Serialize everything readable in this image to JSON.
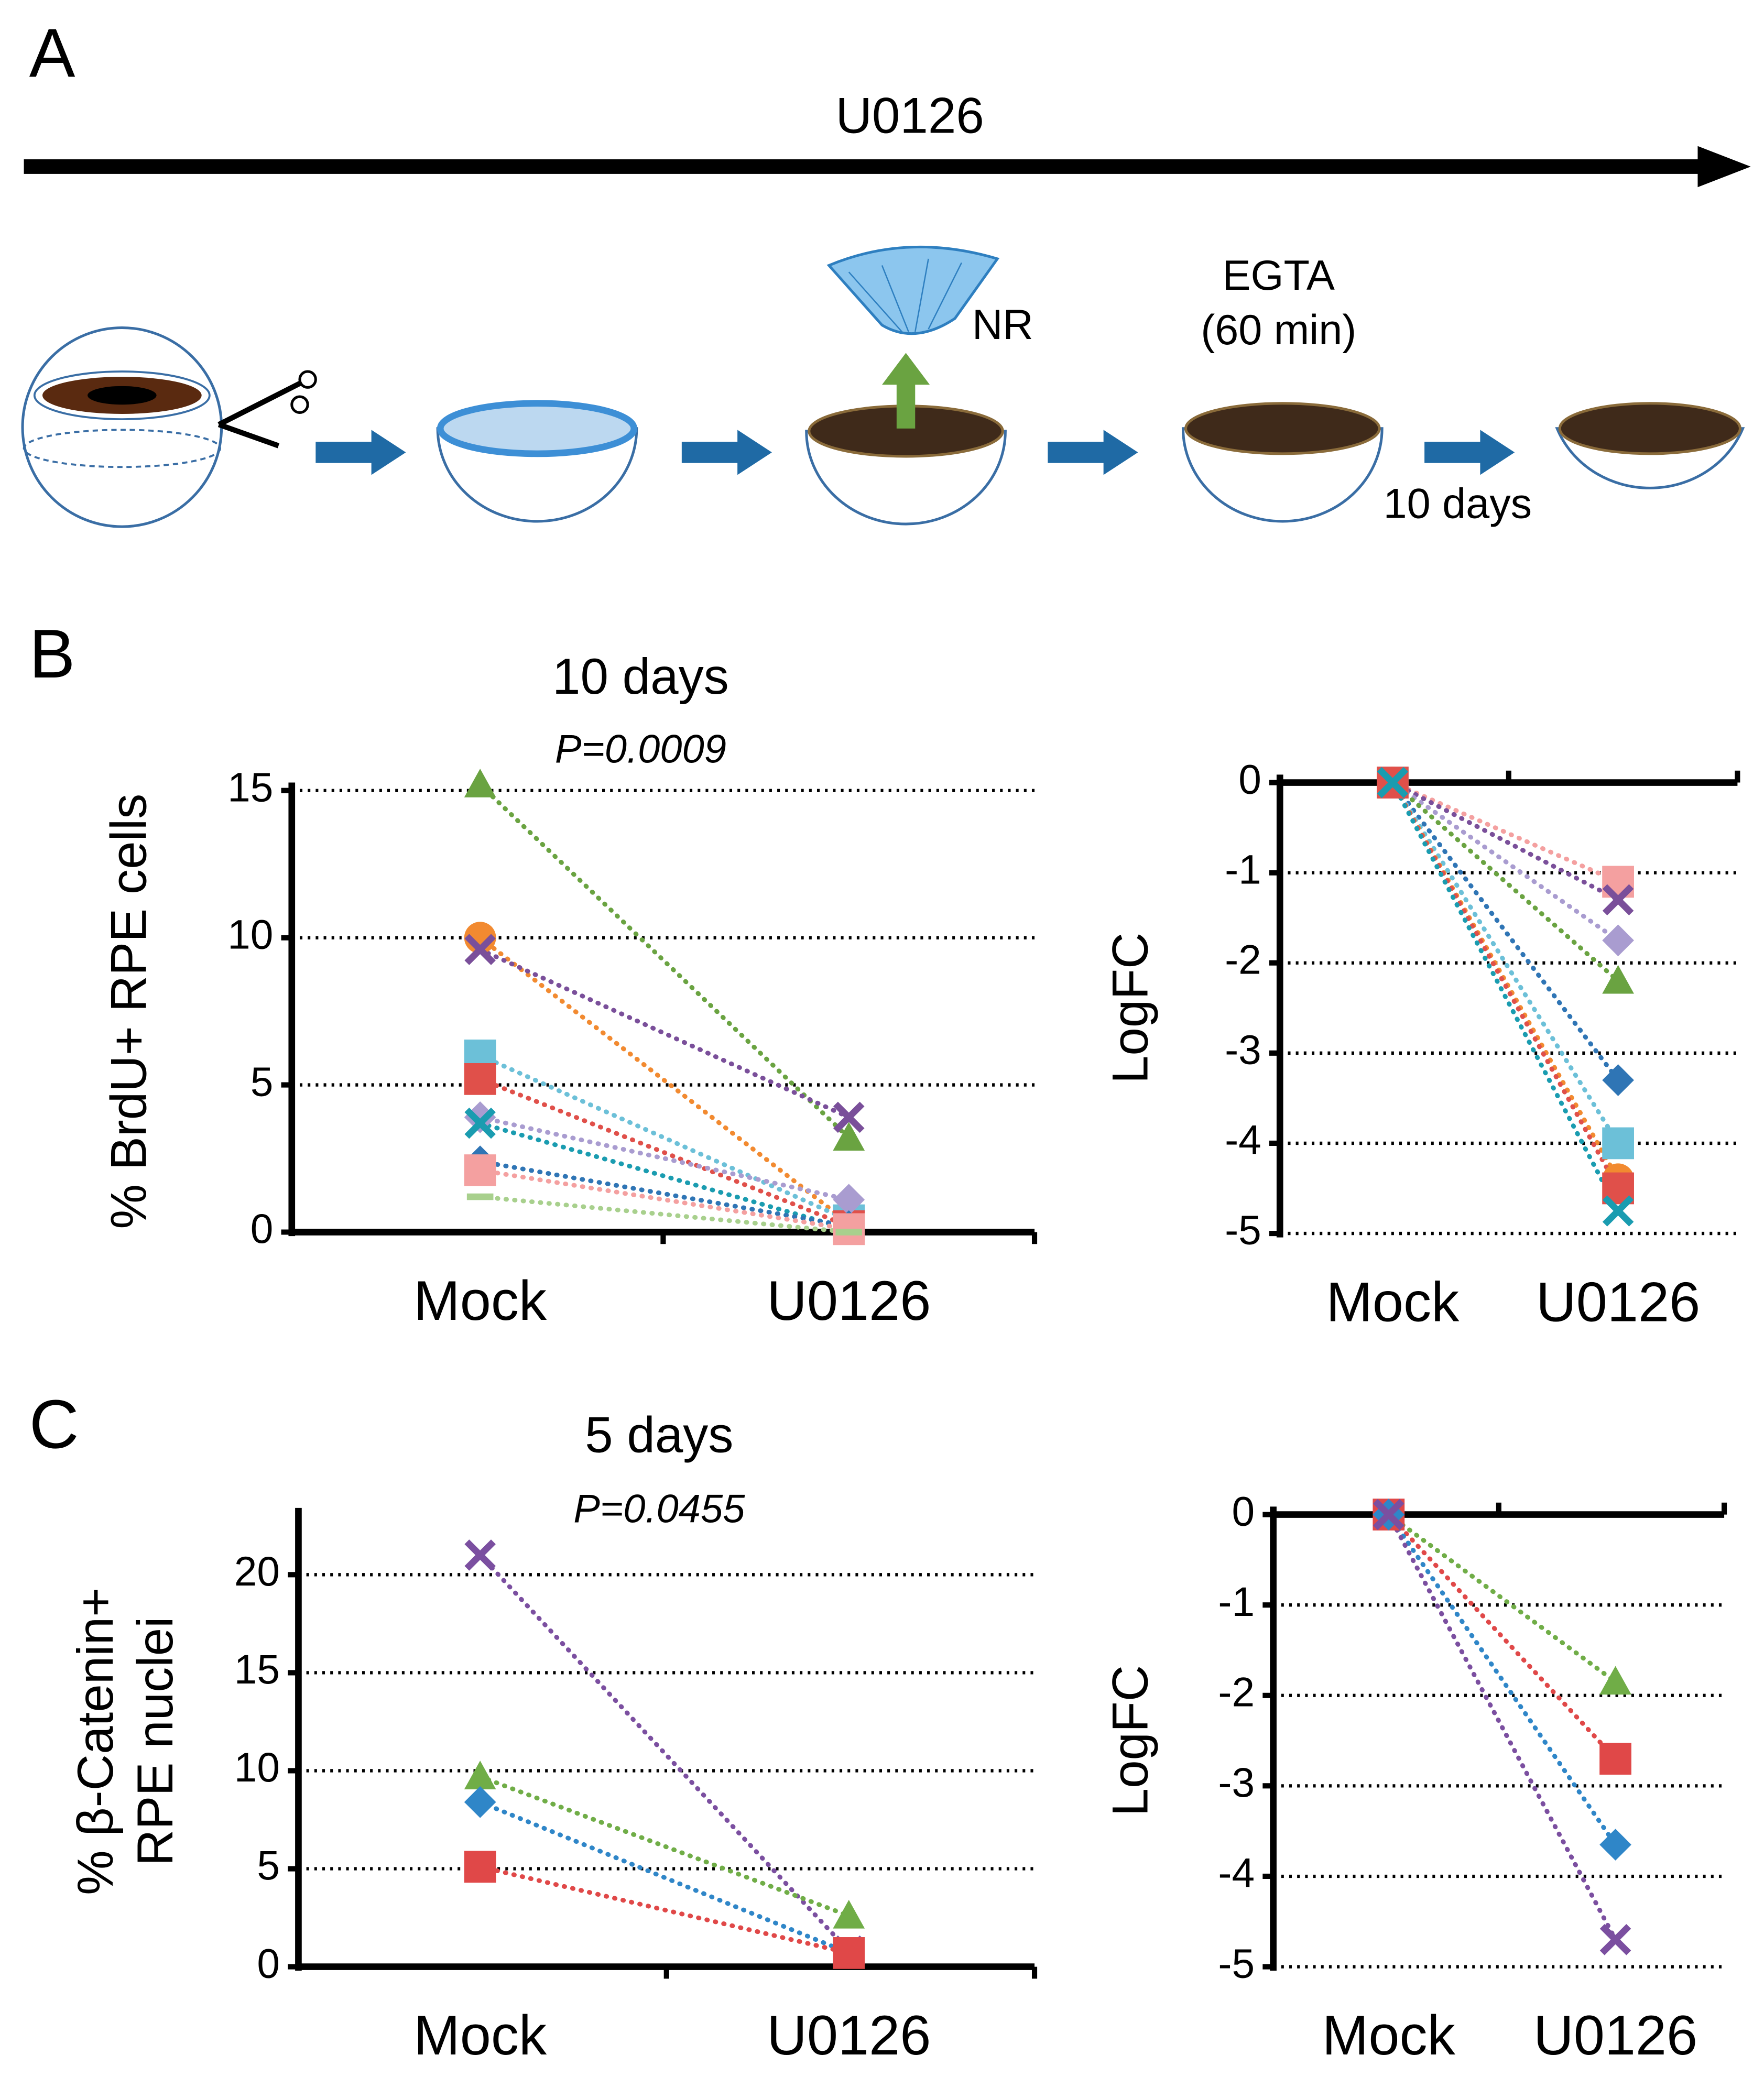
{
  "panel_a": {
    "label": "A",
    "drug": "U0126",
    "tissue": "NR",
    "treatment": [
      "EGTA",
      "(60 min)"
    ],
    "duration": "10 days"
  },
  "panel_labels": {
    "b": "B",
    "c": "C"
  },
  "chart_data": [
    {
      "type": "line",
      "title": "10 days",
      "subtitle": "P=0.0009",
      "y_label": "% BrdU+ RPE cells",
      "categories": [
        "Mock",
        "U0126"
      ],
      "ylim": [
        0,
        15
      ],
      "yticks": [
        0,
        5,
        10,
        15
      ],
      "grid": true,
      "series": [
        {
          "color": "#6aa341",
          "marker": "triangle",
          "values": [
            15.2,
            3.2
          ]
        },
        {
          "color": "#f28a30",
          "marker": "circle",
          "values": [
            10.0,
            0.3
          ]
        },
        {
          "color": "#7a4f9a",
          "marker": "x",
          "values": [
            9.6,
            3.9
          ]
        },
        {
          "color": "#6cc0d8",
          "marker": "square",
          "values": [
            6.0,
            0.4
          ]
        },
        {
          "color": "#e0504a",
          "marker": "square",
          "values": [
            5.2,
            0.2
          ]
        },
        {
          "color": "#a99cd0",
          "marker": "diamond",
          "values": [
            3.9,
            1.1
          ]
        },
        {
          "color": "#1a9cb0",
          "marker": "x",
          "values": [
            3.7,
            0.1
          ]
        },
        {
          "color": "#2f75b5",
          "marker": "diamond",
          "values": [
            2.4,
            0.2
          ]
        },
        {
          "color": "#f4a0a0",
          "marker": "square",
          "values": [
            2.1,
            0.1
          ]
        },
        {
          "color": "#a8d08d",
          "marker": "dash",
          "values": [
            1.2,
            0.0
          ]
        }
      ]
    },
    {
      "type": "line",
      "y_label": "LogFC",
      "categories": [
        "Mock",
        "U0126"
      ],
      "ylim": [
        -5,
        0
      ],
      "yticks": [
        0,
        -1,
        -2,
        -3,
        -4,
        -5
      ],
      "grid": true,
      "series": [
        {
          "color": "#f4a0a0",
          "marker": "square",
          "values": [
            0,
            -1.1
          ]
        },
        {
          "color": "#7a4f9a",
          "marker": "x",
          "values": [
            0,
            -1.3
          ]
        },
        {
          "color": "#a99cd0",
          "marker": "diamond",
          "values": [
            0,
            -1.75
          ]
        },
        {
          "color": "#6aa341",
          "marker": "triangle",
          "values": [
            0,
            -2.2
          ]
        },
        {
          "color": "#2f75b5",
          "marker": "diamond",
          "values": [
            0,
            -3.3
          ]
        },
        {
          "color": "#6cc0d8",
          "marker": "square",
          "values": [
            0,
            -4.0
          ]
        },
        {
          "color": "#f28a30",
          "marker": "circle",
          "values": [
            0,
            -4.4
          ]
        },
        {
          "color": "#e0504a",
          "marker": "square",
          "values": [
            0,
            -4.5
          ]
        },
        {
          "color": "#1a9cb0",
          "marker": "x",
          "values": [
            0,
            -4.75
          ]
        }
      ]
    },
    {
      "type": "line",
      "title": "5 days",
      "subtitle": "P=0.0455",
      "y_label": [
        "% β-Catenin+",
        "RPE nuclei"
      ],
      "categories": [
        "Mock",
        "U0126"
      ],
      "ylim": [
        0,
        23
      ],
      "yticks": [
        0,
        5,
        10,
        15,
        20
      ],
      "grid": true,
      "series": [
        {
          "color": "#7b4fa0",
          "marker": "x",
          "values": [
            21.0,
            0.8
          ]
        },
        {
          "color": "#70ad47",
          "marker": "triangle",
          "values": [
            9.7,
            2.6
          ]
        },
        {
          "color": "#2f86c8",
          "marker": "diamond",
          "values": [
            8.4,
            0.7
          ]
        },
        {
          "color": "#e04848",
          "marker": "square",
          "values": [
            5.1,
            0.7
          ]
        }
      ]
    },
    {
      "type": "line",
      "y_label": "LogFC",
      "categories": [
        "Mock",
        "U0126"
      ],
      "ylim": [
        -5,
        0
      ],
      "yticks": [
        0,
        -1,
        -2,
        -3,
        -4,
        -5
      ],
      "grid": true,
      "series": [
        {
          "color": "#70ad47",
          "marker": "triangle",
          "values": [
            0,
            -1.85
          ]
        },
        {
          "color": "#e04848",
          "marker": "square",
          "values": [
            0,
            -2.7
          ]
        },
        {
          "color": "#2f86c8",
          "marker": "diamond",
          "values": [
            0,
            -3.65
          ]
        },
        {
          "color": "#7b4fa0",
          "marker": "x",
          "values": [
            0,
            -4.7
          ]
        }
      ]
    }
  ]
}
